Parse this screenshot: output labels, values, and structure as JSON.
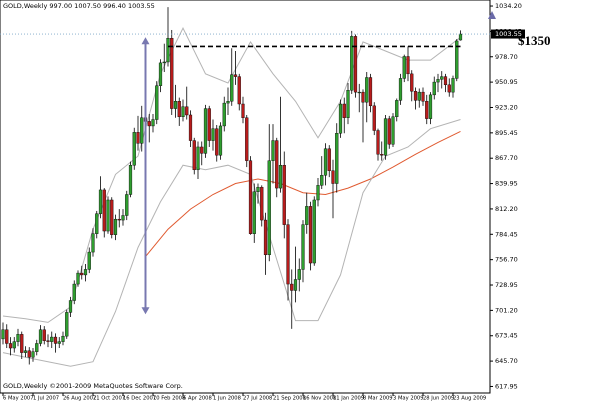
{
  "chart_data": {
    "type": "candlestick",
    "title": "GOLD,Weekly  997.00 1007.50 996.40 1003.55",
    "footer": "GOLD,Weekly ©2001-2009 MetaQuotes Software Corp.",
    "annotation": "$1350",
    "up_color": "#2f9e2f",
    "down_color": "#b81c1c",
    "grid": false,
    "ylim": [
      610.8,
      1040.8
    ],
    "yticks": [
      {
        "value": 1034.2,
        "label": "1034.20"
      },
      1006.45,
      {
        "value": 978.7,
        "label": "978.70"
      },
      950.95,
      {
        "value": 923.2,
        "label": "923.20"
      },
      895.45,
      {
        "value": 867.7,
        "label": "867.70"
      },
      839.95,
      {
        "value": 812.2,
        "label": "812.20"
      },
      784.45,
      {
        "value": 756.7,
        "label": "756.70"
      },
      728.95,
      {
        "value": 701.2,
        "label": "701.20"
      },
      673.45,
      {
        "value": 645.7,
        "label": "645.70"
      },
      617.95
    ],
    "categories": [
      "6 May 2007",
      null,
      null,
      null,
      null,
      null,
      null,
      null,
      "1 Jul 2007",
      null,
      null,
      null,
      null,
      null,
      null,
      null,
      "26 Aug 2007",
      null,
      null,
      null,
      null,
      null,
      null,
      null,
      "21 Oct 2007",
      null,
      null,
      null,
      null,
      null,
      null,
      null,
      "16 Dec 2007",
      null,
      null,
      null,
      null,
      null,
      null,
      null,
      "10 Feb 2008",
      null,
      null,
      null,
      null,
      null,
      null,
      null,
      "6 Apr 2008",
      null,
      null,
      null,
      null,
      null,
      null,
      null,
      "1 Jun 2008",
      null,
      null,
      null,
      null,
      null,
      null,
      null,
      "27 Jul 2008",
      null,
      null,
      null,
      null,
      null,
      null,
      null,
      "21 Sep 2008",
      null,
      null,
      null,
      null,
      null,
      null,
      null,
      "16 Nov 2008",
      null,
      null,
      null,
      null,
      null,
      null,
      null,
      "11 Jan 2009",
      null,
      null,
      null,
      null,
      null,
      null,
      null,
      "8 Mar 2009",
      null,
      null,
      null,
      null,
      null,
      null,
      null,
      "3 May 2009",
      null,
      null,
      null,
      null,
      null,
      null,
      null,
      "28 Jun 2009",
      null,
      null,
      null,
      null,
      null,
      null,
      null,
      "23 Aug 2009",
      null,
      null
    ],
    "open": [
      670,
      680,
      665,
      660,
      667,
      675,
      655,
      657,
      650,
      656,
      665,
      680,
      668,
      667,
      672,
      665,
      667,
      673,
      699,
      712,
      730,
      742,
      740,
      746,
      765,
      785,
      807,
      833,
      788,
      822,
      784,
      801,
      800,
      805,
      828,
      860,
      896,
      884,
      912,
      908,
      903,
      910,
      947,
      972,
      973,
      999,
      922,
      930,
      913,
      924,
      915,
      887,
      855,
      880,
      873,
      922,
      887,
      900,
      871,
      903,
      928,
      930,
      959,
      957,
      927,
      912,
      865,
      785,
      831,
      836,
      800,
      762,
      865,
      887,
      835,
      860,
      795,
      730,
      723,
      735,
      746,
      795,
      815,
      753,
      822,
      838,
      849,
      878,
      854,
      840,
      895,
      927,
      912,
      942,
      1001,
      940,
      940,
      929,
      956,
      925,
      898,
      872,
      871,
      911,
      883,
      913,
      931,
      955,
      979,
      960,
      941,
      931,
      940,
      930,
      911,
      937,
      951,
      954,
      957,
      948,
      940,
      955,
      997
    ],
    "high": [
      688,
      686,
      672,
      672,
      681,
      678,
      662,
      661,
      660,
      669,
      685,
      684,
      675,
      678,
      676,
      672,
      678,
      702,
      716,
      734,
      745,
      750,
      752,
      770,
      791,
      810,
      848,
      835,
      826,
      825,
      806,
      812,
      812,
      832,
      864,
      901,
      914,
      925,
      933,
      916,
      916,
      952,
      976,
      993,
      1033,
      1008,
      948,
      934,
      932,
      946,
      920,
      890,
      886,
      886,
      926,
      925,
      910,
      904,
      907,
      935,
      945,
      988,
      985,
      960,
      935,
      915,
      870,
      840,
      840,
      838,
      808,
      905,
      905,
      890,
      935,
      875,
      801,
      746,
      771,
      758,
      800,
      830,
      820,
      826,
      846,
      870,
      884,
      882,
      866,
      906,
      932,
      934,
      950,
      1007,
      1003,
      949,
      943,
      962,
      960,
      929,
      900,
      886,
      915,
      914,
      917,
      933,
      960,
      981,
      990,
      964,
      945,
      944,
      945,
      937,
      940,
      957,
      960,
      963,
      960,
      955,
      958,
      998,
      1007.5
    ],
    "low": [
      664,
      660,
      652,
      655,
      662,
      648,
      650,
      642,
      645,
      652,
      662,
      664,
      661,
      660,
      655,
      660,
      663,
      670,
      694,
      708,
      727,
      735,
      733,
      742,
      760,
      780,
      802,
      781,
      785,
      780,
      778,
      792,
      794,
      800,
      825,
      855,
      876,
      875,
      900,
      885,
      896,
      905,
      940,
      962,
      968,
      915,
      912,
      903,
      908,
      910,
      880,
      850,
      845,
      860,
      868,
      880,
      876,
      864,
      866,
      897,
      915,
      925,
      948,
      920,
      906,
      858,
      784,
      775,
      818,
      793,
      740,
      755,
      840,
      825,
      830,
      780,
      712,
      681,
      710,
      722,
      732,
      785,
      745,
      750,
      815,
      834,
      838,
      847,
      802,
      830,
      890,
      895,
      905,
      938,
      934,
      918,
      885,
      907,
      918,
      893,
      865,
      865,
      866,
      878,
      880,
      908,
      926,
      951,
      952,
      930,
      921,
      923,
      925,
      905,
      905,
      932,
      940,
      944,
      940,
      935,
      934,
      952,
      996.4
    ],
    "close": [
      680,
      665,
      660,
      667,
      675,
      655,
      657,
      650,
      656,
      665,
      680,
      668,
      667,
      672,
      665,
      667,
      673,
      699,
      712,
      730,
      742,
      740,
      746,
      765,
      785,
      807,
      833,
      788,
      822,
      784,
      801,
      800,
      805,
      828,
      860,
      896,
      884,
      912,
      908,
      903,
      910,
      947,
      972,
      973,
      999,
      922,
      930,
      913,
      924,
      915,
      887,
      855,
      880,
      873,
      922,
      887,
      900,
      871,
      903,
      928,
      930,
      959,
      957,
      927,
      912,
      865,
      785,
      831,
      836,
      800,
      762,
      865,
      887,
      835,
      860,
      795,
      730,
      723,
      735,
      746,
      795,
      815,
      753,
      822,
      838,
      849,
      878,
      854,
      840,
      895,
      927,
      912,
      942,
      1001,
      940,
      940,
      929,
      956,
      925,
      898,
      872,
      871,
      911,
      883,
      913,
      931,
      955,
      979,
      960,
      941,
      931,
      940,
      930,
      911,
      937,
      951,
      954,
      957,
      948,
      940,
      955,
      996,
      1003.55
    ],
    "indicators": [
      {
        "color": "#e05a30",
        "x": [
          38,
          44,
          50,
          56,
          62,
          68,
          74,
          80,
          86,
          92,
          98,
          104,
          110,
          116,
          122
        ],
        "values": [
          760,
          790,
          812,
          828,
          840,
          845,
          840,
          830,
          828,
          835,
          845,
          858,
          872,
          885,
          897
        ]
      },
      {
        "color": "#b4b4b4",
        "x": [
          0,
          6,
          12,
          18,
          24,
          30,
          36,
          42,
          48,
          54,
          60,
          66,
          72,
          78,
          84,
          90,
          96,
          102,
          108,
          114,
          122
        ],
        "values": [
          695,
          692,
          688,
          705,
          790,
          850,
          870,
          960,
          1010,
          960,
          950,
          995,
          960,
          930,
          890,
          930,
          995,
          985,
          975,
          975,
          1000
        ]
      },
      {
        "color": "#b4b4b4",
        "x": [
          0,
          6,
          12,
          18,
          24,
          30,
          36,
          42,
          48,
          54,
          60,
          66,
          72,
          78,
          84,
          90,
          96,
          102,
          108,
          114,
          122
        ],
        "values": [
          655,
          650,
          645,
          640,
          645,
          700,
          770,
          820,
          860,
          855,
          860,
          850,
          770,
          690,
          690,
          740,
          830,
          870,
          880,
          900,
          910
        ]
      }
    ],
    "resistance": {
      "value": 990,
      "x": [
        44,
        122
      ]
    },
    "arrow": {
      "x": 38,
      "values": [
        1000,
        697
      ]
    }
  }
}
